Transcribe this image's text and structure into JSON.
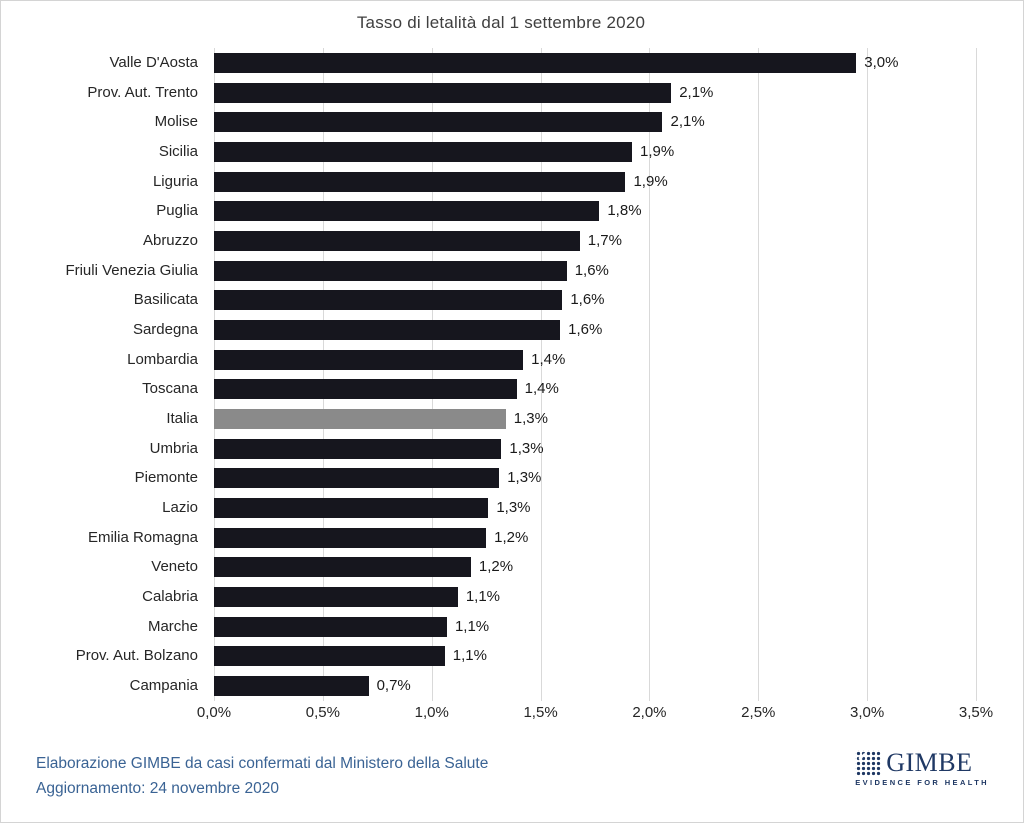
{
  "title": "Tasso di letalità dal 1 settembre 2020",
  "footer": {
    "line1": "Elaborazione GIMBE da casi confermati dal Ministero della Salute",
    "line2": "Aggiornamento: 24 novembre 2020"
  },
  "logo": {
    "name": "GIMBE",
    "tagline": "EVIDENCE FOR HEALTH",
    "check_glyph": "✓"
  },
  "colors": {
    "bar": "#16161e",
    "highlight_bar": "#8a8a8a",
    "gridline": "#d9d9d9",
    "footer_text": "#3a6394",
    "logo_blue": "#1f3864"
  },
  "chart_data": {
    "type": "bar",
    "orientation": "horizontal",
    "title": "Tasso di letalità dal 1 settembre 2020",
    "categories": [
      "Valle D'Aosta",
      "Prov. Aut. Trento",
      "Molise",
      "Sicilia",
      "Liguria",
      "Puglia",
      "Abruzzo",
      "Friuli Venezia Giulia",
      "Basilicata",
      "Sardegna",
      "Lombardia",
      "Toscana",
      "Italia",
      "Umbria",
      "Piemonte",
      "Lazio",
      "Emilia Romagna",
      "Veneto",
      "Calabria",
      "Marche",
      "Prov. Aut. Bolzano",
      "Campania"
    ],
    "values": [
      2.95,
      2.1,
      2.06,
      1.92,
      1.89,
      1.77,
      1.68,
      1.62,
      1.6,
      1.59,
      1.42,
      1.39,
      1.34,
      1.32,
      1.31,
      1.26,
      1.25,
      1.18,
      1.12,
      1.07,
      1.06,
      0.71
    ],
    "value_labels": [
      "3,0%",
      "2,1%",
      "2,1%",
      "1,9%",
      "1,9%",
      "1,8%",
      "1,7%",
      "1,6%",
      "1,6%",
      "1,6%",
      "1,4%",
      "1,4%",
      "1,3%",
      "1,3%",
      "1,3%",
      "1,3%",
      "1,2%",
      "1,2%",
      "1,1%",
      "1,1%",
      "1,1%",
      "0,7%"
    ],
    "highlight_category": "Italia",
    "xlim": [
      0,
      3.5
    ],
    "x_ticks": [
      0,
      0.5,
      1.0,
      1.5,
      2.0,
      2.5,
      3.0,
      3.5
    ],
    "x_tick_labels": [
      "0,0%",
      "0,5%",
      "1,0%",
      "1,5%",
      "2,0%",
      "2,5%",
      "3,0%",
      "3,5%"
    ],
    "grid": "vertical",
    "legend": "none"
  }
}
